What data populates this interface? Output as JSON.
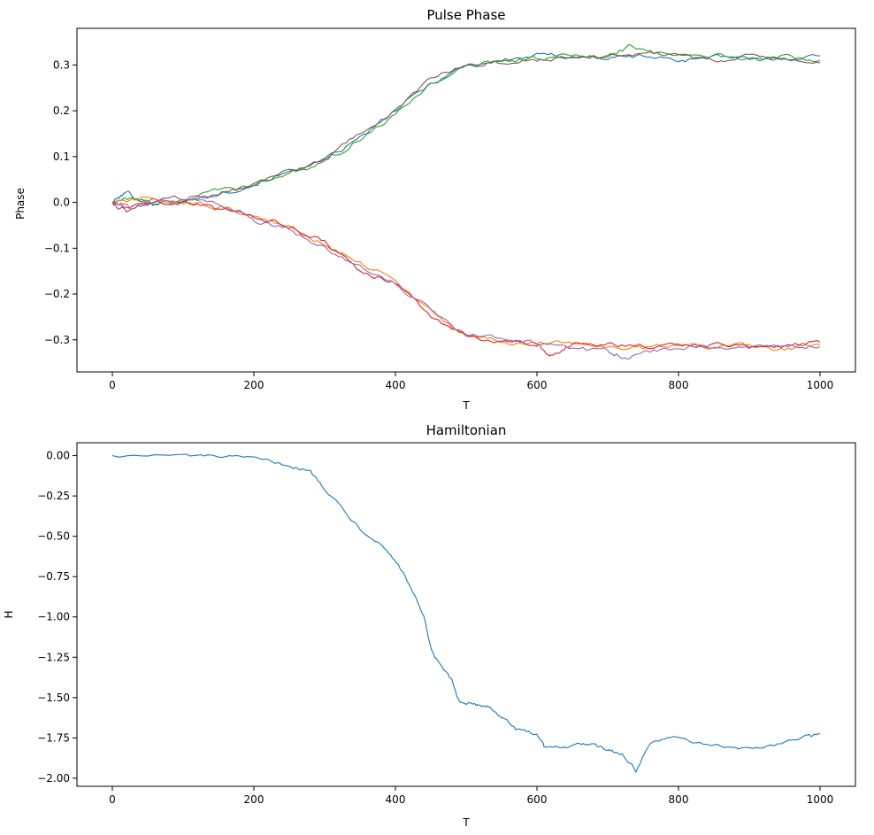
{
  "chart_data": [
    {
      "type": "line",
      "title": "Pulse Phase",
      "xlabel": "T",
      "ylabel": "Phase",
      "xlim": [
        -50,
        1050
      ],
      "ylim": [
        -0.37,
        0.38
      ],
      "xticks": [
        0,
        200,
        400,
        600,
        800,
        1000
      ],
      "yticks": [
        -0.3,
        -0.2,
        -0.1,
        0.0,
        0.1,
        0.2,
        0.3
      ],
      "xtick_labels": [
        "0",
        "200",
        "400",
        "600",
        "800",
        "1000"
      ],
      "ytick_labels": [
        "−0.3",
        "−0.2",
        "−0.1",
        "0.0",
        "0.1",
        "0.2",
        "0.3"
      ],
      "grid": false,
      "series": [
        {
          "color": "#1f77b4",
          "points": [
            [
              0,
              0.0
            ],
            [
              20,
              0.022
            ],
            [
              50,
              0.0
            ],
            [
              100,
              0.0
            ],
            [
              150,
              0.02
            ],
            [
              200,
              0.04
            ],
            [
              250,
              0.07
            ],
            [
              300,
              0.09
            ],
            [
              350,
              0.14
            ],
            [
              400,
              0.2
            ],
            [
              450,
              0.26
            ],
            [
              500,
              0.3
            ],
            [
              550,
              0.31
            ],
            [
              600,
              0.32
            ],
            [
              650,
              0.32
            ],
            [
              700,
              0.315
            ],
            [
              750,
              0.32
            ],
            [
              800,
              0.31
            ],
            [
              850,
              0.32
            ],
            [
              900,
              0.31
            ],
            [
              950,
              0.315
            ],
            [
              1000,
              0.32
            ]
          ]
        },
        {
          "color": "#2ca02c",
          "points": [
            [
              0,
              0.0
            ],
            [
              30,
              0.01
            ],
            [
              60,
              -0.005
            ],
            [
              100,
              0.005
            ],
            [
              150,
              0.025
            ],
            [
              200,
              0.035
            ],
            [
              250,
              0.065
            ],
            [
              300,
              0.085
            ],
            [
              350,
              0.14
            ],
            [
              400,
              0.19
            ],
            [
              450,
              0.26
            ],
            [
              500,
              0.295
            ],
            [
              550,
              0.31
            ],
            [
              600,
              0.315
            ],
            [
              650,
              0.32
            ],
            [
              700,
              0.315
            ],
            [
              730,
              0.34
            ],
            [
              780,
              0.32
            ],
            [
              850,
              0.32
            ],
            [
              900,
              0.31
            ],
            [
              950,
              0.32
            ],
            [
              1000,
              0.31
            ]
          ]
        },
        {
          "color": "#8c564b",
          "points": [
            [
              0,
              0.0
            ],
            [
              20,
              -0.02
            ],
            [
              60,
              0.005
            ],
            [
              100,
              0.01
            ],
            [
              150,
              0.02
            ],
            [
              200,
              0.04
            ],
            [
              250,
              0.07
            ],
            [
              300,
              0.09
            ],
            [
              350,
              0.15
            ],
            [
              400,
              0.2
            ],
            [
              450,
              0.27
            ],
            [
              500,
              0.3
            ],
            [
              550,
              0.305
            ],
            [
              600,
              0.31
            ],
            [
              650,
              0.32
            ],
            [
              700,
              0.32
            ],
            [
              750,
              0.325
            ],
            [
              800,
              0.325
            ],
            [
              850,
              0.31
            ],
            [
              900,
              0.32
            ],
            [
              950,
              0.31
            ],
            [
              1000,
              0.305
            ]
          ]
        },
        {
          "color": "#ff7f0e",
          "points": [
            [
              0,
              0.0
            ],
            [
              40,
              0.005
            ],
            [
              100,
              0.0
            ],
            [
              150,
              -0.01
            ],
            [
              200,
              -0.03
            ],
            [
              250,
              -0.055
            ],
            [
              300,
              -0.09
            ],
            [
              350,
              -0.13
            ],
            [
              400,
              -0.17
            ],
            [
              450,
              -0.24
            ],
            [
              500,
              -0.29
            ],
            [
              550,
              -0.305
            ],
            [
              600,
              -0.31
            ],
            [
              650,
              -0.305
            ],
            [
              700,
              -0.315
            ],
            [
              750,
              -0.32
            ],
            [
              800,
              -0.31
            ],
            [
              850,
              -0.315
            ],
            [
              900,
              -0.31
            ],
            [
              950,
              -0.32
            ],
            [
              1000,
              -0.31
            ]
          ]
        },
        {
          "color": "#d62728",
          "points": [
            [
              0,
              0.0
            ],
            [
              20,
              -0.015
            ],
            [
              60,
              0.0
            ],
            [
              100,
              0.0
            ],
            [
              150,
              -0.015
            ],
            [
              200,
              -0.03
            ],
            [
              250,
              -0.05
            ],
            [
              300,
              -0.085
            ],
            [
              350,
              -0.15
            ],
            [
              400,
              -0.175
            ],
            [
              450,
              -0.25
            ],
            [
              500,
              -0.295
            ],
            [
              550,
              -0.3
            ],
            [
              600,
              -0.31
            ],
            [
              620,
              -0.33
            ],
            [
              650,
              -0.31
            ],
            [
              700,
              -0.31
            ],
            [
              750,
              -0.315
            ],
            [
              800,
              -0.315
            ],
            [
              850,
              -0.31
            ],
            [
              900,
              -0.315
            ],
            [
              950,
              -0.315
            ],
            [
              1000,
              -0.305
            ]
          ]
        },
        {
          "color": "#9467bd",
          "points": [
            [
              0,
              0.0
            ],
            [
              30,
              -0.01
            ],
            [
              80,
              0.005
            ],
            [
              130,
              0.005
            ],
            [
              170,
              -0.02
            ],
            [
              200,
              -0.04
            ],
            [
              250,
              -0.06
            ],
            [
              300,
              -0.1
            ],
            [
              350,
              -0.14
            ],
            [
              400,
              -0.18
            ],
            [
              450,
              -0.235
            ],
            [
              500,
              -0.29
            ],
            [
              550,
              -0.295
            ],
            [
              600,
              -0.31
            ],
            [
              650,
              -0.32
            ],
            [
              700,
              -0.325
            ],
            [
              730,
              -0.34
            ],
            [
              780,
              -0.32
            ],
            [
              850,
              -0.31
            ],
            [
              900,
              -0.32
            ],
            [
              950,
              -0.31
            ],
            [
              1000,
              -0.315
            ]
          ]
        }
      ]
    },
    {
      "type": "line",
      "title": "Hamiltonian",
      "xlabel": "T",
      "ylabel": "H",
      "xlim": [
        -50,
        1050
      ],
      "ylim": [
        -2.05,
        0.08
      ],
      "xticks": [
        0,
        200,
        400,
        600,
        800,
        1000
      ],
      "yticks": [
        0.0,
        -0.25,
        -0.5,
        -0.75,
        -1.0,
        -1.25,
        -1.5,
        -1.75,
        -2.0
      ],
      "xtick_labels": [
        "0",
        "200",
        "400",
        "600",
        "800",
        "1000"
      ],
      "ytick_labels": [
        "0.00",
        "−0.25",
        "−0.50",
        "−0.75",
        "−1.00",
        "−1.25",
        "−1.50",
        "−1.75",
        "−2.00"
      ],
      "grid": false,
      "series": [
        {
          "color": "#1f77b4",
          "points": [
            [
              0,
              0.0
            ],
            [
              100,
              0.0
            ],
            [
              150,
              -0.005
            ],
            [
              200,
              -0.02
            ],
            [
              250,
              -0.06
            ],
            [
              280,
              -0.1
            ],
            [
              300,
              -0.2
            ],
            [
              320,
              -0.3
            ],
            [
              350,
              -0.45
            ],
            [
              380,
              -0.55
            ],
            [
              400,
              -0.65
            ],
            [
              420,
              -0.8
            ],
            [
              440,
              -1.0
            ],
            [
              450,
              -1.2
            ],
            [
              460,
              -1.28
            ],
            [
              480,
              -1.4
            ],
            [
              490,
              -1.52
            ],
            [
              510,
              -1.55
            ],
            [
              530,
              -1.55
            ],
            [
              550,
              -1.62
            ],
            [
              570,
              -1.7
            ],
            [
              600,
              -1.72
            ],
            [
              610,
              -1.8
            ],
            [
              650,
              -1.8
            ],
            [
              680,
              -1.78
            ],
            [
              700,
              -1.82
            ],
            [
              720,
              -1.85
            ],
            [
              740,
              -1.95
            ],
            [
              760,
              -1.78
            ],
            [
              800,
              -1.75
            ],
            [
              850,
              -1.8
            ],
            [
              900,
              -1.82
            ],
            [
              950,
              -1.78
            ],
            [
              980,
              -1.74
            ],
            [
              1000,
              -1.72
            ]
          ]
        }
      ]
    }
  ]
}
